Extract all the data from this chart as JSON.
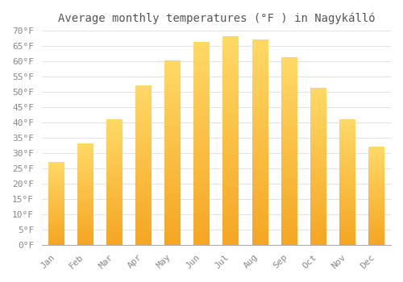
{
  "title": "Average monthly temperatures (°F ) in Nagykálló",
  "months": [
    "Jan",
    "Feb",
    "Mar",
    "Apr",
    "May",
    "Jun",
    "Jul",
    "Aug",
    "Sep",
    "Oct",
    "Nov",
    "Dec"
  ],
  "values": [
    27,
    33,
    41,
    52,
    60,
    66,
    68,
    67,
    61,
    51,
    41,
    32
  ],
  "bar_color_bottom": "#F5A623",
  "bar_color_top": "#FFD966",
  "background_color": "#FFFFFF",
  "grid_color": "#DDDDDD",
  "ylim": [
    0,
    70
  ],
  "yticks": [
    0,
    5,
    10,
    15,
    20,
    25,
    30,
    35,
    40,
    45,
    50,
    55,
    60,
    65,
    70
  ],
  "title_fontsize": 10,
  "tick_fontsize": 8,
  "tick_color": "#888888",
  "ylabel_suffix": "°F",
  "bar_width": 0.55
}
